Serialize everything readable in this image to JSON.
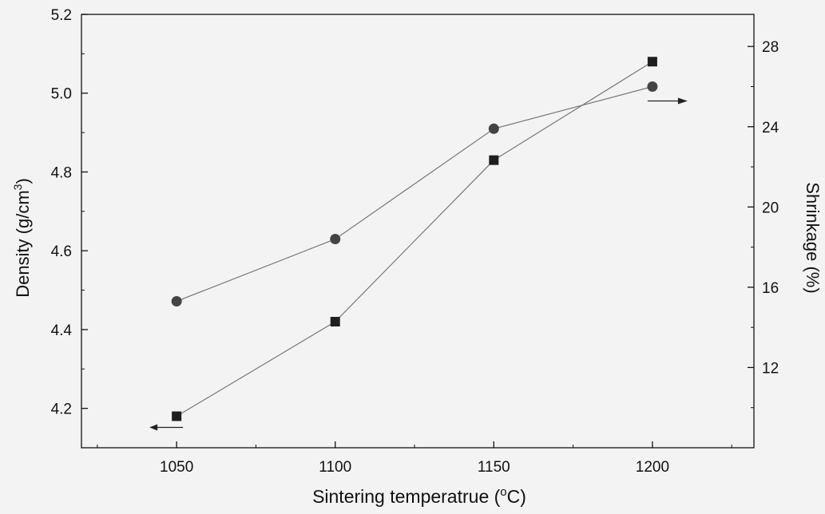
{
  "chart_data": {
    "type": "scatter",
    "xlabel": "Sintering temperatrue (",
    "xlabel_unit_sup": "o",
    "xlabel_unit_tail": "C)",
    "ylabel_left": "Density (g/cm",
    "ylabel_left_sup": "3",
    "ylabel_left_tail": ")",
    "ylabel_right": "Shrinkage (%)",
    "x_ticks": [
      "1050",
      "1100",
      "1150",
      "1200"
    ],
    "y_left_ticks": [
      "4.2",
      "4.4",
      "4.6",
      "4.8",
      "5.0",
      "5.2"
    ],
    "y_right_ticks": [
      "12",
      "16",
      "20",
      "24",
      "28"
    ],
    "xlim": [
      1020,
      1232
    ],
    "ylim_left": [
      4.1,
      5.2
    ],
    "ylim_right": [
      8.0,
      29.6
    ],
    "grid": false,
    "series": [
      {
        "axis": "left",
        "marker": "square",
        "x": [
          1050,
          1100,
          1150,
          1200
        ],
        "values": [
          4.18,
          4.42,
          4.83,
          5.08
        ]
      },
      {
        "axis": "right",
        "marker": "circle",
        "x": [
          1050,
          1100,
          1150,
          1200
        ],
        "values": [
          15.3,
          18.4,
          23.9,
          26.0
        ]
      }
    ],
    "annotations": [
      {
        "type": "arrow",
        "direction": "left",
        "series": "density"
      },
      {
        "type": "arrow",
        "direction": "right",
        "series": "shrinkage"
      }
    ],
    "colors": {
      "square_marker": "#1e1e1e",
      "circle_marker": "#444444",
      "line": "#777777"
    }
  }
}
